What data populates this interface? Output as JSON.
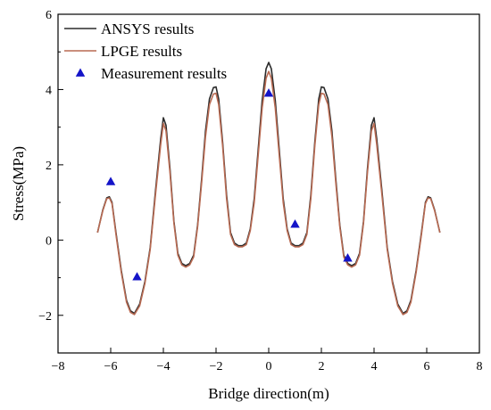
{
  "chart_data": {
    "type": "line",
    "title": "",
    "xlabel": "Bridge direction(m)",
    "ylabel": "Stress(MPa)",
    "xlim": [
      -8,
      8
    ],
    "ylim": [
      -3,
      6
    ],
    "xticks": [
      -8,
      -6,
      -4,
      -2,
      0,
      2,
      4,
      6,
      8
    ],
    "yticks": [
      -2,
      0,
      2,
      4,
      6
    ],
    "xtick_labels": [
      "−8",
      "−6",
      "−4",
      "−2",
      "0",
      "2",
      "4",
      "6",
      "8"
    ],
    "ytick_labels": [
      "−2",
      "0",
      "2",
      "4",
      "6"
    ],
    "grid": false,
    "legend": "top-left",
    "series": [
      {
        "name": "ANSYS results",
        "kind": "line",
        "color": "#2b2b2b",
        "x": [
          -6.5,
          -6.3,
          -6.15,
          -6.05,
          -5.95,
          -5.8,
          -5.6,
          -5.4,
          -5.25,
          -5.1,
          -4.9,
          -4.7,
          -4.5,
          -4.3,
          -4.1,
          -4.0,
          -3.9,
          -3.75,
          -3.6,
          -3.45,
          -3.3,
          -3.15,
          -3.0,
          -2.85,
          -2.7,
          -2.55,
          -2.4,
          -2.25,
          -2.1,
          -2.0,
          -1.9,
          -1.75,
          -1.6,
          -1.45,
          -1.3,
          -1.15,
          -1.0,
          -0.85,
          -0.7,
          -0.55,
          -0.4,
          -0.25,
          -0.1,
          0.0,
          0.1,
          0.25,
          0.4,
          0.55,
          0.7,
          0.85,
          1.0,
          1.15,
          1.3,
          1.45,
          1.6,
          1.75,
          1.9,
          2.0,
          2.1,
          2.25,
          2.4,
          2.55,
          2.7,
          2.85,
          3.0,
          3.15,
          3.3,
          3.45,
          3.6,
          3.75,
          3.9,
          4.0,
          4.1,
          4.3,
          4.5,
          4.7,
          4.9,
          5.1,
          5.25,
          5.4,
          5.6,
          5.8,
          5.95,
          6.05,
          6.15,
          6.3,
          6.5
        ],
        "y": [
          0.2,
          0.8,
          1.12,
          1.15,
          1.0,
          0.2,
          -0.8,
          -1.6,
          -1.88,
          -1.95,
          -1.7,
          -1.1,
          -0.2,
          1.3,
          2.7,
          3.25,
          3.05,
          1.9,
          0.5,
          -0.35,
          -0.62,
          -0.68,
          -0.62,
          -0.4,
          0.4,
          1.6,
          2.9,
          3.75,
          4.05,
          4.07,
          3.75,
          2.6,
          1.2,
          0.2,
          -0.08,
          -0.15,
          -0.15,
          -0.08,
          0.3,
          1.1,
          2.4,
          3.7,
          4.55,
          4.72,
          4.55,
          3.7,
          2.4,
          1.1,
          0.3,
          -0.08,
          -0.15,
          -0.15,
          -0.08,
          0.2,
          1.2,
          2.6,
          3.75,
          4.07,
          4.05,
          3.75,
          2.9,
          1.6,
          0.4,
          -0.4,
          -0.62,
          -0.68,
          -0.62,
          -0.35,
          0.5,
          1.9,
          3.05,
          3.25,
          2.7,
          1.3,
          -0.2,
          -1.1,
          -1.7,
          -1.95,
          -1.88,
          -1.6,
          -0.8,
          0.2,
          1.0,
          1.15,
          1.12,
          0.8,
          0.2
        ]
      },
      {
        "name": "LPGE results",
        "kind": "line",
        "color": "#b86a52",
        "x": [
          -6.5,
          -6.3,
          -6.15,
          -6.05,
          -5.95,
          -5.8,
          -5.6,
          -5.4,
          -5.25,
          -5.1,
          -4.9,
          -4.7,
          -4.5,
          -4.3,
          -4.1,
          -4.0,
          -3.9,
          -3.75,
          -3.6,
          -3.45,
          -3.3,
          -3.15,
          -3.0,
          -2.85,
          -2.7,
          -2.55,
          -2.4,
          -2.25,
          -2.1,
          -2.0,
          -1.9,
          -1.75,
          -1.6,
          -1.45,
          -1.3,
          -1.15,
          -1.0,
          -0.85,
          -0.7,
          -0.55,
          -0.4,
          -0.25,
          -0.1,
          0.0,
          0.1,
          0.25,
          0.4,
          0.55,
          0.7,
          0.85,
          1.0,
          1.15,
          1.3,
          1.45,
          1.6,
          1.75,
          1.9,
          2.0,
          2.1,
          2.25,
          2.4,
          2.55,
          2.7,
          2.85,
          3.0,
          3.15,
          3.3,
          3.45,
          3.6,
          3.75,
          3.9,
          4.0,
          4.1,
          4.3,
          4.5,
          4.7,
          4.9,
          5.1,
          5.25,
          5.4,
          5.6,
          5.8,
          5.95,
          6.05,
          6.15,
          6.3,
          6.5
        ],
        "y": [
          0.2,
          0.78,
          1.1,
          1.12,
          0.97,
          0.15,
          -0.85,
          -1.65,
          -1.92,
          -1.98,
          -1.75,
          -1.15,
          -0.25,
          1.2,
          2.55,
          3.1,
          2.9,
          1.8,
          0.45,
          -0.4,
          -0.66,
          -0.72,
          -0.66,
          -0.45,
          0.35,
          1.5,
          2.75,
          3.6,
          3.88,
          3.9,
          3.6,
          2.5,
          1.1,
          0.15,
          -0.12,
          -0.18,
          -0.18,
          -0.12,
          0.25,
          1.0,
          2.25,
          3.5,
          4.3,
          4.48,
          4.3,
          3.5,
          2.25,
          1.0,
          0.25,
          -0.12,
          -0.18,
          -0.18,
          -0.12,
          0.15,
          1.1,
          2.5,
          3.6,
          3.9,
          3.88,
          3.6,
          2.75,
          1.5,
          0.35,
          -0.45,
          -0.66,
          -0.72,
          -0.66,
          -0.4,
          0.45,
          1.8,
          2.9,
          3.1,
          2.55,
          1.2,
          -0.25,
          -1.15,
          -1.75,
          -1.98,
          -1.92,
          -1.65,
          -0.85,
          0.15,
          0.97,
          1.12,
          1.1,
          0.78,
          0.2
        ]
      },
      {
        "name": "Measurement results",
        "kind": "scatter",
        "color": "#1414c8",
        "marker": "triangle",
        "x": [
          -6,
          -5,
          0,
          1,
          3
        ],
        "y": [
          1.55,
          -0.98,
          3.9,
          0.42,
          -0.48
        ]
      }
    ]
  }
}
